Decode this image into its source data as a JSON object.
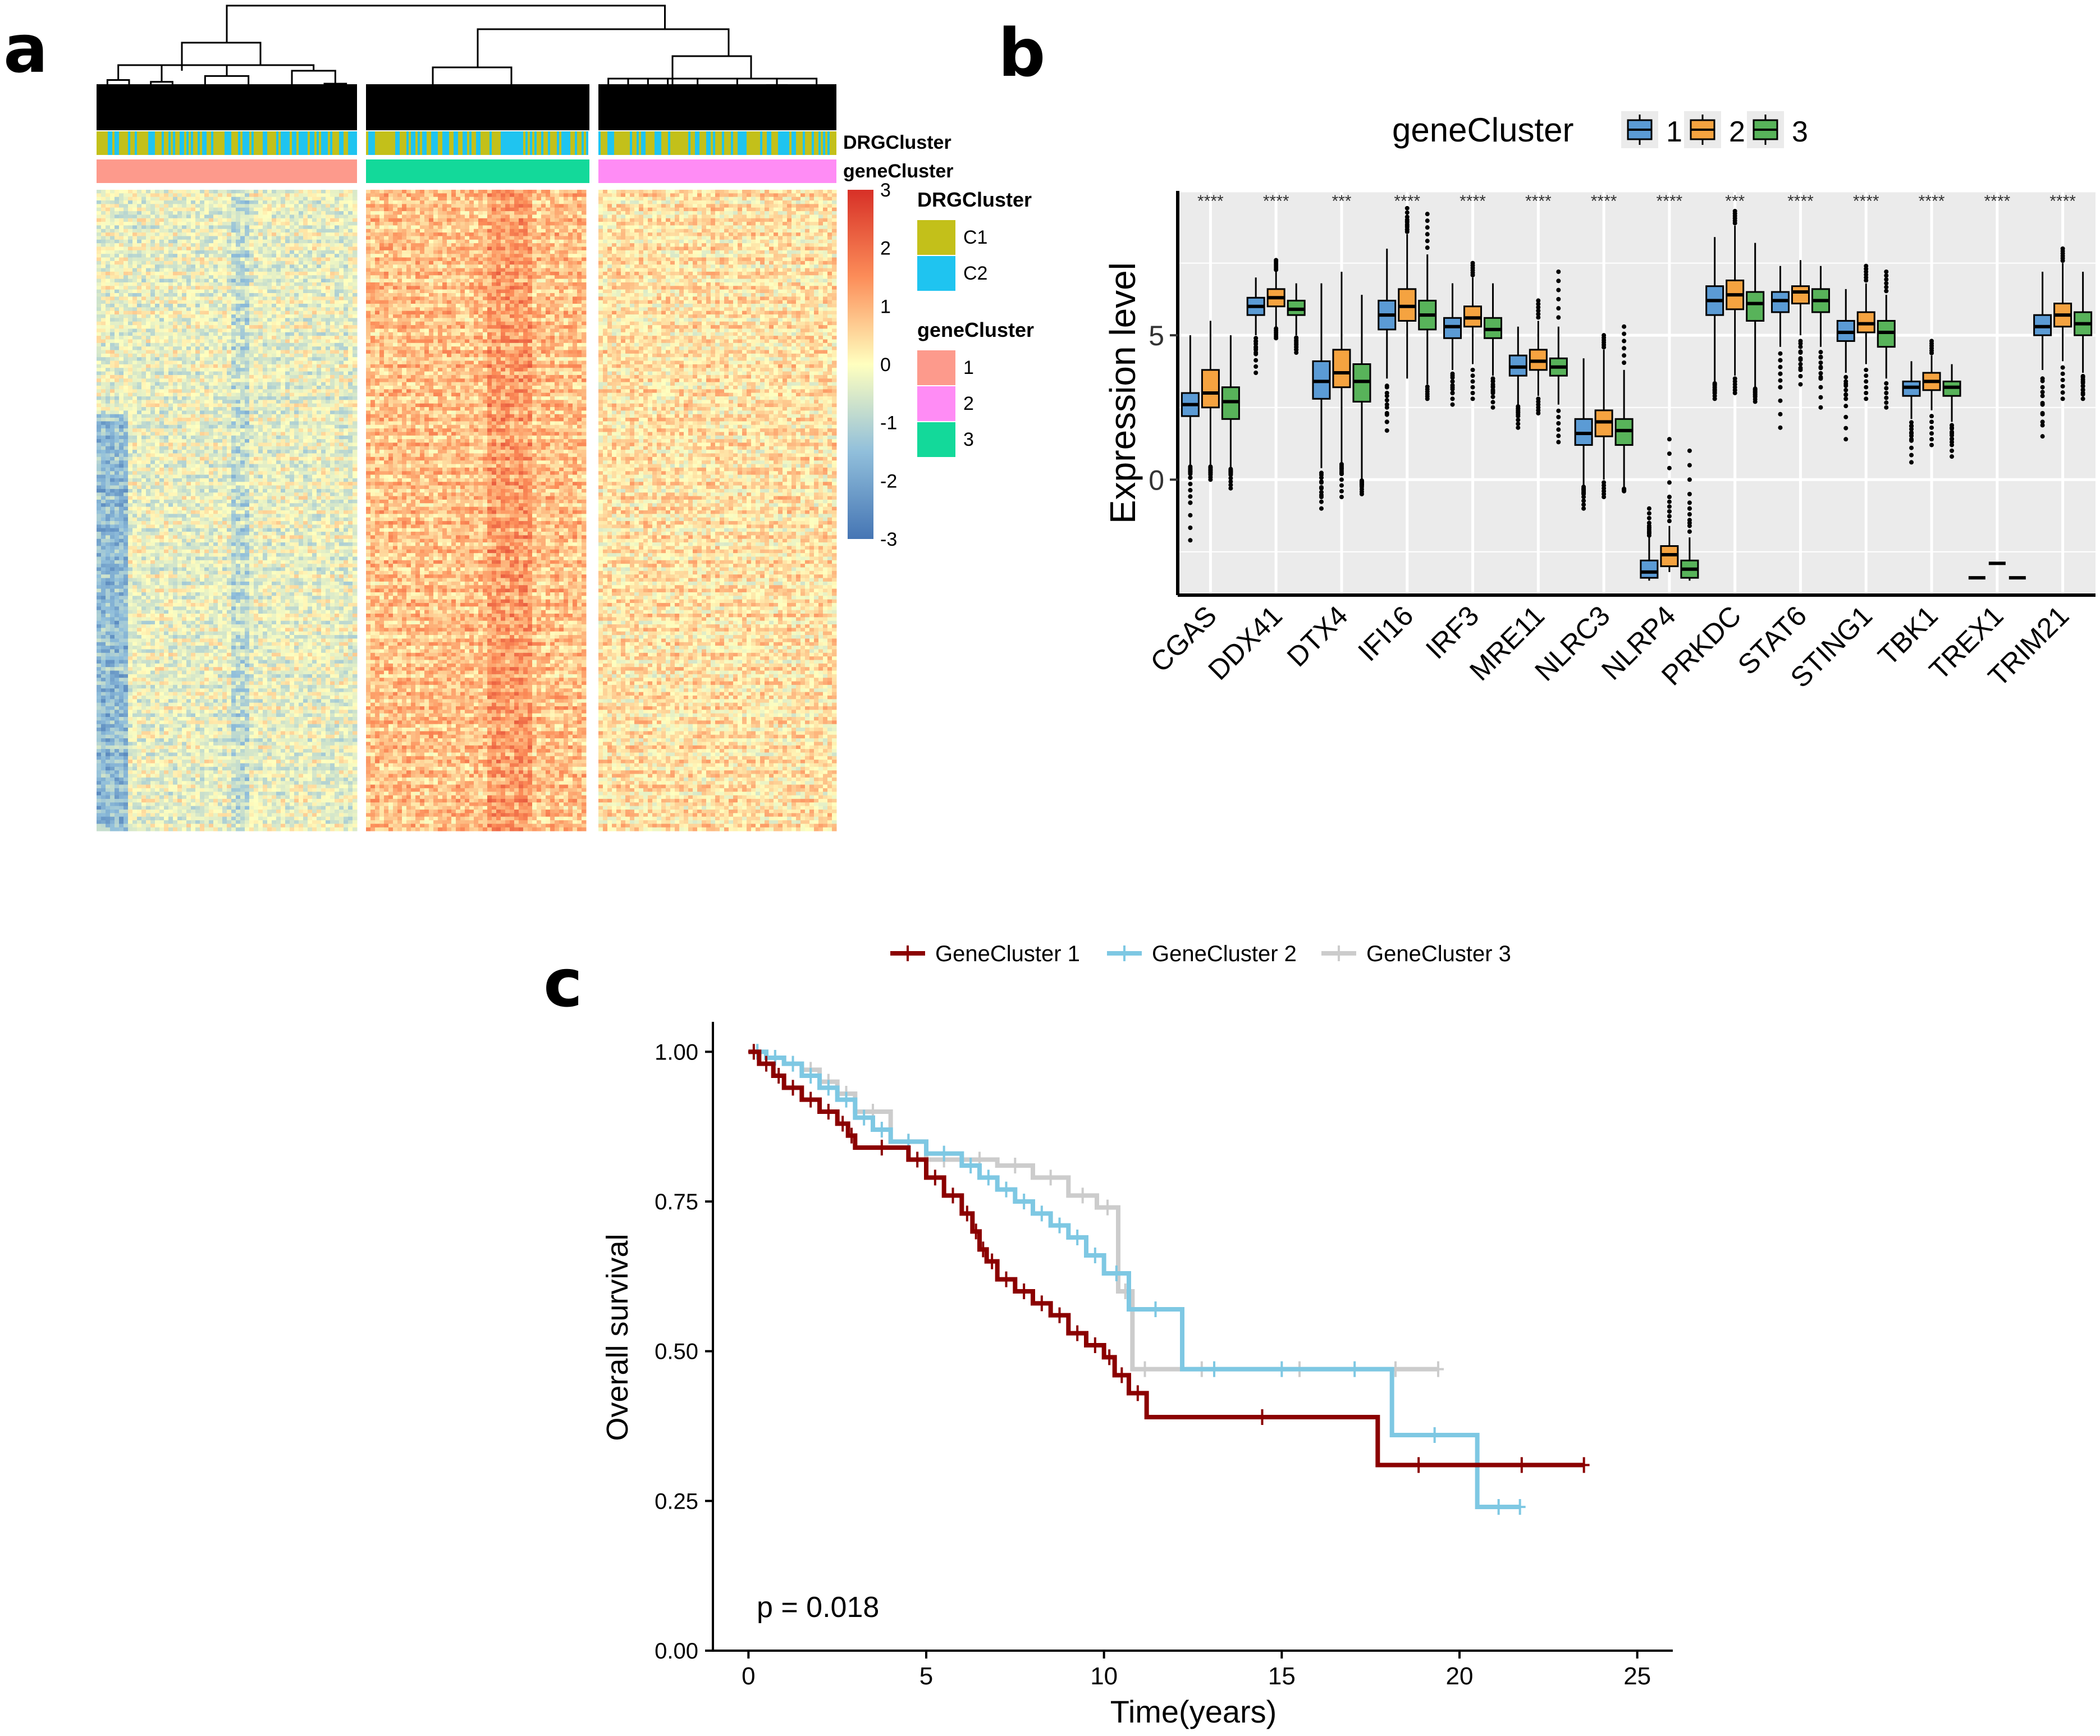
{
  "panel_labels": {
    "a": "a",
    "b": "b",
    "c": "c"
  },
  "colors": {
    "C1": "#c3c01a",
    "C2": "#1fc4f0",
    "gc1": "#fd9a8c",
    "gc2": "#ff8cf5",
    "gc3": "#13d99a",
    "box1": "#5b9bd5",
    "box2": "#f5a340",
    "box3": "#58b35a",
    "km1": "#8b0000",
    "km2": "#7ec8e3",
    "km3": "#cccccc",
    "panel_bg": "#ebebeb"
  },
  "chart_data": [
    {
      "type": "heatmap",
      "panel": "a",
      "row_annotation_labels": [
        "DRGCluster",
        "geneCluster"
      ],
      "column_groups": [
        {
          "geneCluster": "1",
          "columns": 190
        },
        {
          "geneCluster": "3",
          "columns": 160
        },
        {
          "geneCluster": "2",
          "columns": 170
        }
      ],
      "color_scale": {
        "min": -3,
        "max": 3,
        "ticks": [
          "3",
          "2",
          "1",
          "0",
          "-1",
          "-2",
          "-3"
        ]
      },
      "legend": {
        "drg": {
          "title": "DRGCluster",
          "items": [
            "C1",
            "C2"
          ]
        },
        "gene": {
          "title": "geneCluster",
          "items": [
            "1",
            "2",
            "3"
          ]
        }
      }
    },
    {
      "type": "box",
      "panel": "b",
      "legend_title": "geneCluster",
      "series_names": [
        "1",
        "2",
        "3"
      ],
      "ylabel": "Expression level",
      "ylim": [
        -4,
        10
      ],
      "yticks": [
        "0",
        "5"
      ],
      "ytick_values": [
        0,
        5
      ],
      "genes": [
        {
          "name": "CGAS",
          "sig": "****",
          "box": [
            [
              2.2,
              2.6,
              3.0
            ],
            [
              2.5,
              3.0,
              3.8
            ],
            [
              2.1,
              2.7,
              3.2
            ]
          ],
          "whisk": [
            [
              0.5,
              5.0
            ],
            [
              0.5,
              5.5
            ],
            [
              0.4,
              5.0
            ]
          ],
          "out": [
            [
              -2.1,
              -0.8,
              0.2
            ],
            [
              0.2,
              0.0
            ],
            [
              0.2,
              -0.3
            ]
          ]
        },
        {
          "name": "DDX41",
          "sig": "****",
          "box": [
            [
              5.7,
              6.0,
              6.3
            ],
            [
              6.0,
              6.3,
              6.6
            ],
            [
              5.7,
              5.9,
              6.2
            ]
          ],
          "whisk": [
            [
              5.0,
              7.0
            ],
            [
              5.3,
              7.2
            ],
            [
              5.0,
              6.8
            ]
          ],
          "out": [
            [
              4.4,
              3.7
            ],
            [
              4.9,
              7.6
            ],
            [
              4.4,
              4.5
            ]
          ]
        },
        {
          "name": "DTX4",
          "sig": "***",
          "box": [
            [
              2.8,
              3.4,
              4.1
            ],
            [
              3.2,
              3.7,
              4.5
            ],
            [
              2.7,
              3.4,
              4.0
            ]
          ],
          "whisk": [
            [
              0.4,
              6.8
            ],
            [
              0.6,
              7.2
            ],
            [
              0.0,
              6.4
            ]
          ],
          "out": [
            [
              -1.0,
              -0.6
            ],
            [
              0.2,
              -0.6
            ],
            [
              -0.2,
              -0.5
            ]
          ]
        },
        {
          "name": "IFI16",
          "sig": "****",
          "box": [
            [
              5.2,
              5.7,
              6.2
            ],
            [
              5.5,
              6.0,
              6.6
            ],
            [
              5.2,
              5.7,
              6.2
            ]
          ],
          "whisk": [
            [
              3.5,
              8.0
            ],
            [
              3.5,
              8.5
            ],
            [
              3.3,
              7.8
            ]
          ],
          "out": [
            [
              2.0,
              1.7
            ],
            [
              9.4,
              9.0
            ],
            [
              2.8,
              9.2
            ]
          ]
        },
        {
          "name": "IRF3",
          "sig": "****",
          "box": [
            [
              4.9,
              5.3,
              5.6
            ],
            [
              5.3,
              5.6,
              6.0
            ],
            [
              4.9,
              5.2,
              5.6
            ]
          ],
          "whisk": [
            [
              3.8,
              6.8
            ],
            [
              4.0,
              7.0
            ],
            [
              3.6,
              6.8
            ]
          ],
          "out": [
            [
              3.0,
              2.6
            ],
            [
              2.8,
              7.5
            ],
            [
              2.5,
              3.0
            ]
          ]
        },
        {
          "name": "MRE11",
          "sig": "****",
          "box": [
            [
              3.6,
              3.9,
              4.3
            ],
            [
              3.8,
              4.1,
              4.5
            ],
            [
              3.6,
              3.9,
              4.2
            ]
          ],
          "whisk": [
            [
              2.6,
              5.3
            ],
            [
              2.9,
              5.5
            ],
            [
              2.6,
              5.3
            ]
          ],
          "out": [
            [
              1.8,
              2.2
            ],
            [
              2.3,
              6.2
            ],
            [
              1.3,
              7.2
            ]
          ]
        },
        {
          "name": "NLRC3",
          "sig": "****",
          "box": [
            [
              1.2,
              1.6,
              2.1
            ],
            [
              1.5,
              2.0,
              2.4
            ],
            [
              1.2,
              1.7,
              2.1
            ]
          ],
          "whisk": [
            [
              -0.2,
              4.2
            ],
            [
              0.0,
              4.5
            ],
            [
              -0.3,
              3.8
            ]
          ],
          "out": [
            [
              -1.0,
              -0.5
            ],
            [
              -0.6,
              5.0
            ],
            [
              -0.4,
              5.3
            ]
          ]
        },
        {
          "name": "NLRP4",
          "sig": "****",
          "box": [
            [
              -3.4,
              -3.2,
              -2.8
            ],
            [
              -3.0,
              -2.6,
              -2.3
            ],
            [
              -3.4,
              -3.1,
              -2.8
            ]
          ],
          "whisk": [
            [
              -3.5,
              -2.0
            ],
            [
              -3.2,
              -1.6
            ],
            [
              -3.5,
              -2.0
            ]
          ],
          "out": [
            [
              -1.6,
              -1.0
            ],
            [
              -0.6,
              1.4
            ],
            [
              -0.8,
              1.0
            ]
          ]
        },
        {
          "name": "PRKDC",
          "sig": "***",
          "box": [
            [
              5.7,
              6.2,
              6.7
            ],
            [
              5.9,
              6.4,
              6.9
            ],
            [
              5.5,
              6.1,
              6.5
            ]
          ],
          "whisk": [
            [
              3.4,
              8.4
            ],
            [
              3.6,
              8.8
            ],
            [
              3.2,
              8.2
            ]
          ],
          "out": [
            [
              2.8,
              3.0
            ],
            [
              9.3,
              3.0
            ],
            [
              2.7,
              2.9
            ]
          ]
        },
        {
          "name": "STAT6",
          "sig": "****",
          "box": [
            [
              5.8,
              6.2,
              6.5
            ],
            [
              6.1,
              6.5,
              6.7
            ],
            [
              5.8,
              6.2,
              6.6
            ]
          ],
          "whisk": [
            [
              4.6,
              7.4
            ],
            [
              5.0,
              7.6
            ],
            [
              4.6,
              7.4
            ]
          ],
          "out": [
            [
              1.8,
              3.2
            ],
            [
              3.3,
              3.8
            ],
            [
              2.5,
              3.5
            ]
          ]
        },
        {
          "name": "STING1",
          "sig": "****",
          "box": [
            [
              4.8,
              5.1,
              5.5
            ],
            [
              5.1,
              5.4,
              5.8
            ],
            [
              4.6,
              5.1,
              5.5
            ]
          ],
          "whisk": [
            [
              3.7,
              6.6
            ],
            [
              4.0,
              6.8
            ],
            [
              3.5,
              6.4
            ]
          ],
          "out": [
            [
              1.4,
              2.8
            ],
            [
              2.8,
              7.4
            ],
            [
              2.5,
              7.2
            ]
          ]
        },
        {
          "name": "TBK1",
          "sig": "****",
          "box": [
            [
              2.9,
              3.2,
              3.4
            ],
            [
              3.1,
              3.4,
              3.7
            ],
            [
              2.9,
              3.2,
              3.4
            ]
          ],
          "whisk": [
            [
              2.1,
              4.1
            ],
            [
              2.4,
              4.3
            ],
            [
              2.0,
              4.0
            ]
          ],
          "out": [
            [
              1.4,
              0.6
            ],
            [
              1.2,
              4.8
            ],
            [
              0.8,
              1.3
            ]
          ]
        },
        {
          "name": "TREX1",
          "sig": "****",
          "box": [
            [
              -3.4,
              -3.4,
              -3.4
            ],
            [
              -2.9,
              -2.9,
              -2.9
            ],
            [
              -3.4,
              -3.4,
              -3.4
            ]
          ],
          "whisk": [
            [
              -3.4,
              -3.4
            ],
            [
              -2.9,
              -2.9
            ],
            [
              -3.4,
              -3.4
            ]
          ],
          "out": [
            [],
            [],
            []
          ]
        },
        {
          "name": "TRIM21",
          "sig": "****",
          "box": [
            [
              5.0,
              5.3,
              5.7
            ],
            [
              5.3,
              5.7,
              6.1
            ],
            [
              5.0,
              5.4,
              5.8
            ]
          ],
          "whisk": [
            [
              3.8,
              7.2
            ],
            [
              4.1,
              7.5
            ],
            [
              3.7,
              7.2
            ]
          ],
          "out": [
            [
              1.5,
              2.0
            ],
            [
              8.0,
              2.8
            ],
            [
              2.8,
              3.0
            ]
          ]
        }
      ]
    },
    {
      "type": "line",
      "subtype": "kaplan-meier",
      "panel": "c",
      "xlabel": "Time(years)",
      "ylabel": "Overall survival",
      "xlim": [
        -1,
        26
      ],
      "ylim": [
        0,
        1.05
      ],
      "xticks": [
        0,
        5,
        10,
        15,
        20,
        25
      ],
      "xtick_labels": [
        "0",
        "5",
        "10",
        "15",
        "20",
        "25"
      ],
      "yticks": [
        0,
        0.25,
        0.5,
        0.75,
        1.0
      ],
      "ytick_labels": [
        "0.00",
        "0.25",
        "0.50",
        "0.75",
        "1.00"
      ],
      "pvalue": "p = 0.018",
      "series": [
        {
          "name": "GeneCluster 1",
          "x": [
            0,
            0.3,
            0.7,
            1.0,
            1.5,
            2.0,
            2.5,
            2.8,
            3.0,
            4.5,
            5.0,
            5.5,
            6.0,
            6.3,
            6.5,
            6.7,
            7.0,
            7.5,
            8.0,
            8.5,
            9.0,
            9.5,
            10.0,
            10.3,
            10.7,
            11.2,
            17.7,
            20.0,
            23.5
          ],
          "y": [
            1,
            0.98,
            0.96,
            0.94,
            0.92,
            0.9,
            0.88,
            0.86,
            0.84,
            0.82,
            0.79,
            0.76,
            0.73,
            0.7,
            0.67,
            0.65,
            0.62,
            0.6,
            0.58,
            0.56,
            0.53,
            0.51,
            0.49,
            0.46,
            0.43,
            0.39,
            0.31,
            0.31,
            0.31
          ]
        },
        {
          "name": "GeneCluster 2",
          "x": [
            0,
            0.5,
            1.0,
            1.5,
            2.0,
            2.5,
            3.0,
            3.5,
            4.0,
            5.0,
            6.0,
            6.5,
            7.0,
            7.5,
            8.0,
            8.5,
            9.0,
            9.5,
            10.0,
            10.7,
            12.2,
            14.0,
            16.0,
            18.1,
            20.5,
            21.7
          ],
          "y": [
            1,
            0.99,
            0.98,
            0.96,
            0.94,
            0.92,
            0.89,
            0.87,
            0.85,
            0.83,
            0.81,
            0.79,
            0.77,
            0.75,
            0.73,
            0.71,
            0.69,
            0.66,
            0.63,
            0.57,
            0.47,
            0.47,
            0.47,
            0.36,
            0.24,
            0.24
          ]
        },
        {
          "name": "GeneCluster 3",
          "x": [
            0,
            0.5,
            1.0,
            1.5,
            2.0,
            2.5,
            3.0,
            4.0,
            5.0,
            6.0,
            7.0,
            8.0,
            9.0,
            9.8,
            10.4,
            10.8,
            11.5,
            14.0,
            17.0,
            19.4
          ],
          "y": [
            1,
            0.99,
            0.98,
            0.97,
            0.95,
            0.93,
            0.9,
            0.85,
            0.82,
            0.82,
            0.81,
            0.79,
            0.76,
            0.74,
            0.6,
            0.47,
            0.47,
            0.47,
            0.47,
            0.47
          ]
        }
      ]
    }
  ]
}
